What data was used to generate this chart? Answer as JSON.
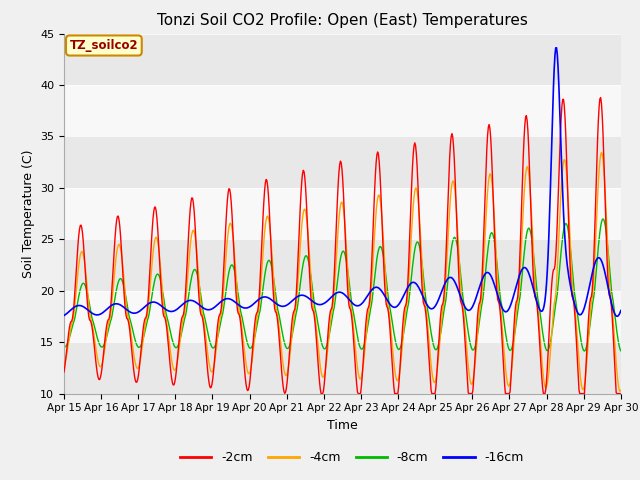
{
  "title": "Tonzi Soil CO2 Profile: Open (East) Temperatures",
  "xlabel": "Time",
  "ylabel": "Soil Temperature (C)",
  "ylim": [
    10,
    45
  ],
  "yticks": [
    10,
    15,
    20,
    25,
    30,
    35,
    40,
    45
  ],
  "legend_label": "TZ_soilco2",
  "series_labels": [
    "-2cm",
    "-4cm",
    "-8cm",
    "-16cm"
  ],
  "series_colors": [
    "#ff0000",
    "#ffa500",
    "#00bb00",
    "#0000ff"
  ],
  "x_tick_labels": [
    "Apr 15",
    "Apr 16",
    "Apr 17",
    "Apr 18",
    "Apr 19",
    "Apr 20",
    "Apr 21",
    "Apr 22",
    "Apr 23",
    "Apr 24",
    "Apr 25",
    "Apr 26",
    "Apr 27",
    "Apr 28",
    "Apr 29",
    "Apr 30"
  ],
  "fig_facecolor": "#f0f0f0",
  "plot_facecolor": "#ffffff",
  "band_colors": [
    "#e8e8e8",
    "#f8f8f8"
  ],
  "title_fontsize": 11,
  "axis_label_fontsize": 9,
  "tick_fontsize": 8,
  "n_points": 720
}
